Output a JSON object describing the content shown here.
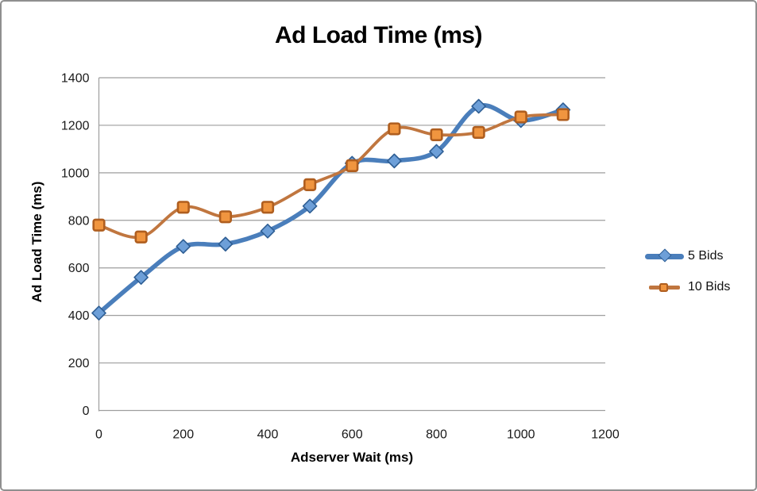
{
  "window": {
    "background": "#ffffff",
    "border_color": "#8f8f8f"
  },
  "chart_data": {
    "type": "line",
    "title": "Ad Load Time (ms)",
    "xlabel": "Adserver Wait (ms)",
    "ylabel": "Ad Load Time (ms)",
    "xlim": [
      0,
      1200
    ],
    "ylim": [
      0,
      1400
    ],
    "x_ticks": [
      0,
      200,
      400,
      600,
      800,
      1000,
      1200
    ],
    "y_ticks": [
      0,
      200,
      400,
      600,
      800,
      1000,
      1200,
      1400
    ],
    "grid": "horizontal",
    "gridline_color": "#9e9e9e",
    "legend_position": "right",
    "smoothed_lines": true,
    "x": [
      0,
      100,
      200,
      300,
      400,
      500,
      600,
      700,
      800,
      900,
      1000,
      1100
    ],
    "series": [
      {
        "name": "5 Bids",
        "marker": "diamond",
        "line_color": "#4a7ebb",
        "marker_fill": "#6d9fd8",
        "marker_stroke": "#2e5e94",
        "values": [
          410,
          560,
          690,
          700,
          755,
          860,
          1040,
          1050,
          1090,
          1280,
          1220,
          1265
        ]
      },
      {
        "name": "10 Bids",
        "marker": "square",
        "line_color": "#c0763f",
        "marker_fill": "#f0953f",
        "marker_stroke": "#af5e1f",
        "values": [
          780,
          730,
          855,
          815,
          855,
          950,
          1030,
          1185,
          1160,
          1170,
          1235,
          1245
        ]
      }
    ]
  }
}
